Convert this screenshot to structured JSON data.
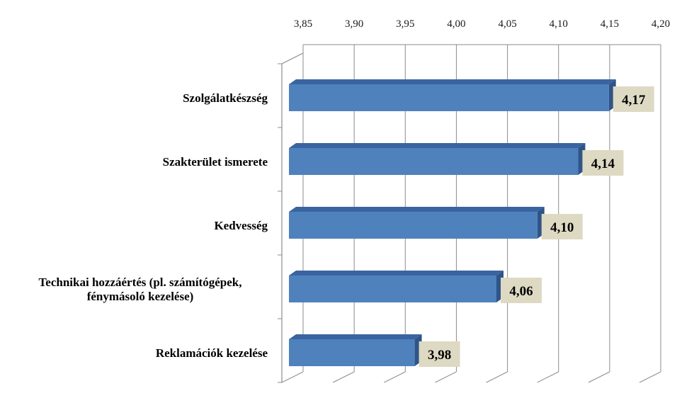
{
  "chart_data": {
    "type": "bar",
    "orientation": "horizontal",
    "categories": [
      "Szolgálatkészség",
      "Szakterület ismerete",
      "Kedvesség",
      "Technikai hozzáértés (pl. számítógépek, fénymásoló kezelése)",
      "Reklamációk kezelése"
    ],
    "category_lines": [
      [
        "Szolgálatkészség"
      ],
      [
        "Szakterület ismerete"
      ],
      [
        "Kedvesség"
      ],
      [
        "Technikai hozzáértés (pl. számítógépek,",
        "fénymásoló kezelése)"
      ],
      [
        "Reklamációk kezelése"
      ]
    ],
    "values": [
      4.17,
      4.14,
      4.1,
      4.06,
      3.98
    ],
    "value_labels": [
      "4,17",
      "4,14",
      "4,10",
      "4,06",
      "3,98"
    ],
    "xlim": [
      3.85,
      4.2
    ],
    "ticks": [
      3.85,
      3.9,
      3.95,
      4.0,
      4.05,
      4.1,
      4.15,
      4.2
    ],
    "tick_labels": [
      "3,85",
      "3,90",
      "3,95",
      "4,00",
      "4,05",
      "4,10",
      "4,15",
      "4,20"
    ],
    "x_axis_position": "top",
    "grid": true,
    "legend": "none",
    "style": "3d",
    "title": "",
    "xlabel": "",
    "ylabel": ""
  },
  "colors": {
    "bar_front": "#4f81bd",
    "bar_top": "#3a64a0",
    "bar_side": "#2f5487",
    "label_bg": "#ddd9c3",
    "grid": "#8c8c8c"
  }
}
